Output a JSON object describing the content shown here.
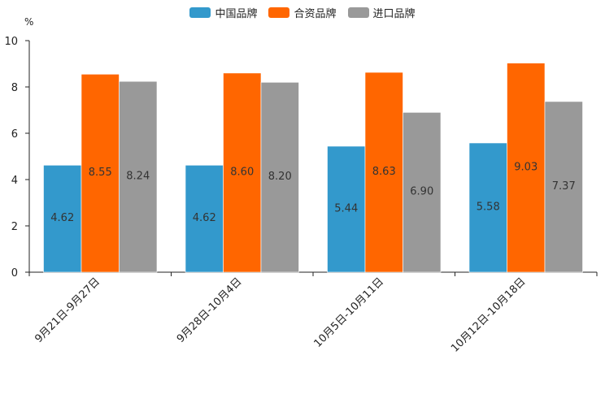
{
  "chart_data": {
    "type": "bar",
    "title": "",
    "unit": "%",
    "xlabel": "",
    "ylabel": "",
    "ylim": [
      0,
      10
    ],
    "yticks": [
      0,
      2,
      4,
      6,
      8,
      10
    ],
    "categories": [
      "9月21日-9月27日",
      "9月28日-10月4日",
      "10月5日-10月11日",
      "10月12日-10月18日"
    ],
    "series": [
      {
        "name": "中国品牌",
        "color": "#3399cc",
        "values": [
          4.62,
          4.62,
          5.44,
          5.58
        ],
        "labels": [
          "4.62",
          "4.62",
          "5.44",
          "5.58"
        ]
      },
      {
        "name": "合资品牌",
        "color": "#ff6600",
        "values": [
          8.55,
          8.6,
          8.63,
          9.03
        ],
        "labels": [
          "8.55",
          "8.60",
          "8.63",
          "9.03"
        ]
      },
      {
        "name": "进口品牌",
        "color": "#999999",
        "values": [
          8.24,
          8.2,
          6.9,
          7.37
        ],
        "labels": [
          "8.24",
          "8.20",
          "6.90",
          "7.37"
        ]
      }
    ],
    "legend_position": "top-center",
    "grid": false
  }
}
